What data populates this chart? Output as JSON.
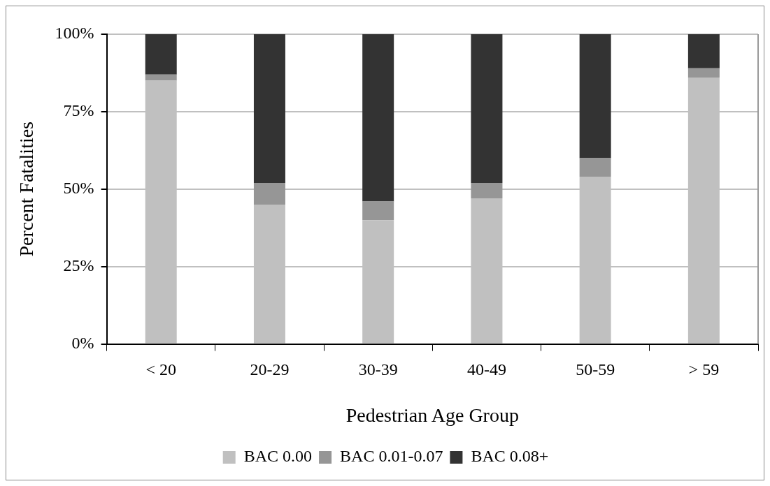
{
  "chart_data": {
    "type": "bar",
    "stacked": true,
    "xlabel": "Pedestrian Age Group",
    "ylabel": "Percent Fatalities",
    "categories": [
      "< 20",
      "20-29",
      "30-39",
      "40-49",
      "50-59",
      "> 59"
    ],
    "series": [
      {
        "name": "BAC 0.00",
        "color": "#c0c0c0",
        "values": [
          85,
          45,
          40,
          47,
          54,
          86
        ]
      },
      {
        "name": "BAC 0.01-0.07",
        "color": "#969696",
        "values": [
          2,
          7,
          6,
          5,
          6,
          3
        ]
      },
      {
        "name": "BAC 0.08+",
        "color": "#333333",
        "values": [
          13,
          48,
          54,
          48,
          40,
          11
        ]
      }
    ],
    "ylim": [
      0,
      100
    ],
    "yticks": [
      {
        "value": 0,
        "label": "0%"
      },
      {
        "value": 25,
        "label": "25%"
      },
      {
        "value": 50,
        "label": "50%"
      },
      {
        "value": 75,
        "label": "75%"
      },
      {
        "value": 100,
        "label": "100%"
      }
    ],
    "grid": "y",
    "legend": "bottom"
  }
}
